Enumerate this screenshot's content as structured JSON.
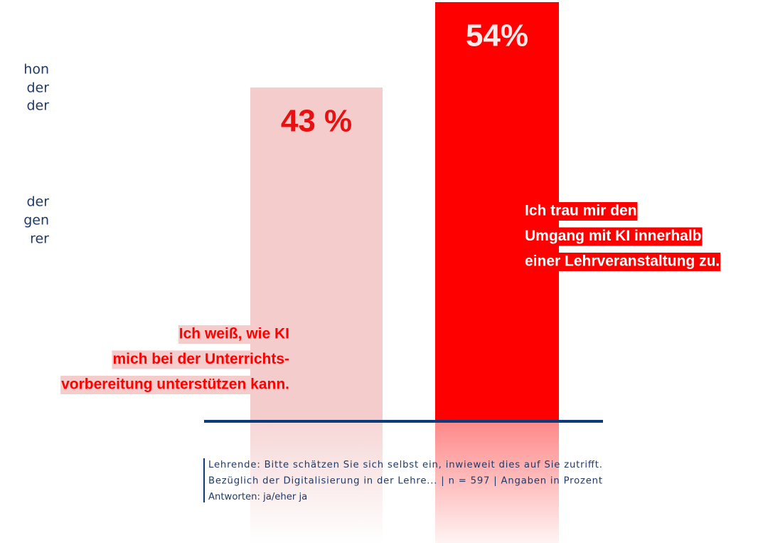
{
  "side_text": [
    "hon",
    "der",
    "der",
    "der",
    "gen",
    "rer"
  ],
  "chart_data": {
    "type": "bar",
    "categories": [
      [
        "Ich weiß, wie KI",
        "mich bei der Unterrichts-",
        "vorbereitung unterstützen kann."
      ],
      [
        "Ich trau mir den",
        "Umgang mit KI innerhalb",
        "einer Lehrveranstaltung zu."
      ]
    ],
    "values": [
      43,
      54
    ],
    "value_labels": [
      "43 %",
      "54%"
    ],
    "colors": [
      "#f4cccc",
      "#ff0000"
    ],
    "ylim": [
      0,
      54
    ],
    "footnote": [
      "Lehrende: Bitte schätzen Sie sich selbst ein, inwieweit dies auf Sie zutrifft.",
      "Bezüglich der Digitalisierung in der Lehre... | n = 597 | Angaben in  Prozent",
      "Antworten: ja/eher ja"
    ]
  }
}
